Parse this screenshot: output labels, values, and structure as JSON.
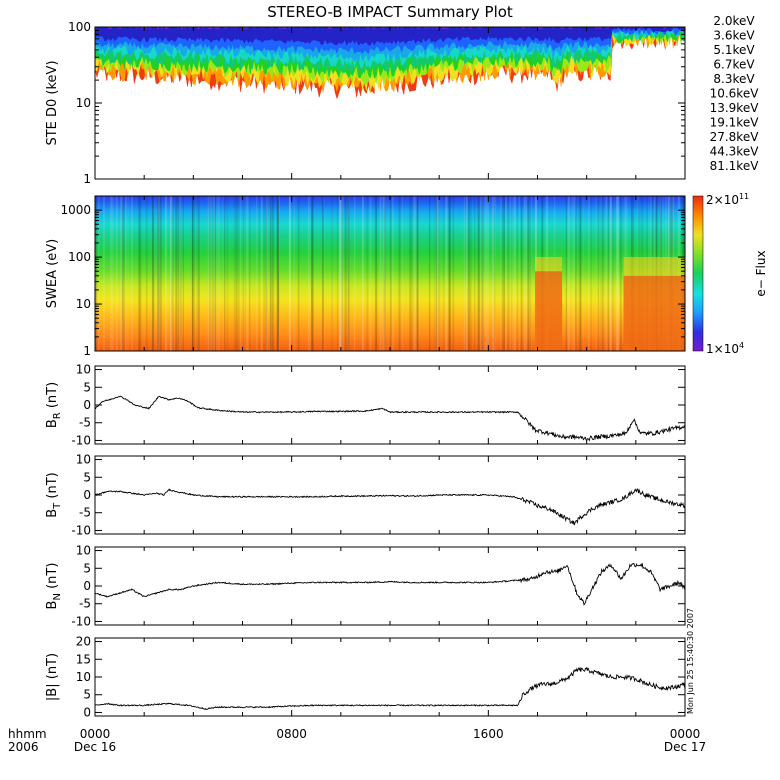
{
  "title": "STEREO-B IMPACT Summary Plot",
  "stamp": "Mon Jun 25 15:40:30 2007",
  "x_axis": {
    "label_lines": [
      "hhmm",
      "2006"
    ],
    "ticks": [
      {
        "t": 0,
        "line1": "0000",
        "line2": "Dec 16"
      },
      {
        "t": 8,
        "line1": "0800",
        "line2": ""
      },
      {
        "t": 16,
        "line1": "1600",
        "line2": ""
      },
      {
        "t": 24,
        "line1": "0000",
        "line2": "Dec 17"
      }
    ],
    "range_hours": [
      0,
      24
    ]
  },
  "chart_data": [
    {
      "type": "line",
      "id": "ste",
      "ylabel": "STE D0 (keV)",
      "scale": "log",
      "ylim": [
        1,
        100
      ],
      "yticks": [
        1,
        10,
        100
      ],
      "tick_labels": [
        "1",
        "10",
        "100"
      ],
      "series": [
        {
          "name": "2.0keV",
          "color": "#9b1fe8"
        },
        {
          "name": "3.6keV",
          "color": "#2323c8"
        },
        {
          "name": "5.1keV",
          "color": "#1e63ff"
        },
        {
          "name": "6.7keV",
          "color": "#18a8e8"
        },
        {
          "name": "8.3keV",
          "color": "#15d8c8"
        },
        {
          "name": "10.6keV",
          "color": "#14c870"
        },
        {
          "name": "13.9keV",
          "color": "#22d022"
        },
        {
          "name": "19.1keV",
          "color": "#9be81a"
        },
        {
          "name": "27.8keV",
          "color": "#f0e020"
        },
        {
          "name": "44.3keV",
          "color": "#ff9b00"
        },
        {
          "name": "81.1keV",
          "color": "#f03c14"
        }
      ],
      "profile_note": "",
      "typical_floor_keV": {
        "before_16h": 25,
        "min_around_11h": 15,
        "after_21h": 70
      }
    },
    {
      "type": "heatmap",
      "id": "swea",
      "ylabel": "SWEA (eV)",
      "scale": "log",
      "ylim": [
        1,
        2000
      ],
      "yticks": [
        1,
        10,
        100,
        1000
      ],
      "tick_labels": [
        "1",
        "10",
        "100",
        "1000"
      ],
      "colorbar": {
        "label": "e− Flux",
        "max_base": "2×10",
        "max_exp": "11",
        "min_base": "1×10",
        "min_exp": "4"
      },
      "features": [
        {
          "from_h": 17.9,
          "to_h": 19.0,
          "note": "enhanced flux below ~50 eV"
        },
        {
          "from_h": 21.5,
          "to_h": 24.0,
          "note": "enhanced flux below ~40 eV"
        }
      ]
    },
    {
      "type": "line",
      "id": "br",
      "ylabel_main": "B",
      "ylabel_sub": "R",
      "ylabel_unit": "(nT)",
      "ylim": [
        -11,
        11
      ],
      "yticks": [
        -10,
        -5,
        0,
        5,
        10
      ],
      "tick_labels": [
        "-10",
        "-5",
        "0",
        "5",
        "10"
      ],
      "keypoints": [
        [
          0,
          -1
        ],
        [
          0.3,
          1
        ],
        [
          0.6,
          1.5
        ],
        [
          1.0,
          2.5
        ],
        [
          1.3,
          1.5
        ],
        [
          1.6,
          0
        ],
        [
          2.2,
          -1
        ],
        [
          2.6,
          2.5
        ],
        [
          3.0,
          1.5
        ],
        [
          3.4,
          2
        ],
        [
          3.8,
          1
        ],
        [
          4.2,
          -0.8
        ],
        [
          5,
          -1.5
        ],
        [
          6,
          -2
        ],
        [
          7,
          -2
        ],
        [
          8,
          -2
        ],
        [
          9,
          -1.8
        ],
        [
          10,
          -1.8
        ],
        [
          11,
          -1.7
        ],
        [
          11.7,
          -1
        ],
        [
          12,
          -2
        ],
        [
          13,
          -2
        ],
        [
          14,
          -2
        ],
        [
          15,
          -2
        ],
        [
          16,
          -2
        ],
        [
          17.2,
          -2
        ],
        [
          17.5,
          -4
        ],
        [
          17.9,
          -7
        ],
        [
          18.5,
          -8
        ],
        [
          19,
          -9
        ],
        [
          19.5,
          -9
        ],
        [
          20,
          -9.5
        ],
        [
          20.5,
          -9
        ],
        [
          21.2,
          -8.5
        ],
        [
          21.6,
          -8
        ],
        [
          21.9,
          -4
        ],
        [
          22.2,
          -8
        ],
        [
          22.7,
          -8
        ],
        [
          23.3,
          -7
        ],
        [
          24,
          -6
        ]
      ]
    },
    {
      "type": "line",
      "id": "bt",
      "ylabel_main": "B",
      "ylabel_sub": "T",
      "ylabel_unit": "(nT)",
      "ylim": [
        -11,
        11
      ],
      "yticks": [
        -10,
        -5,
        0,
        5,
        10
      ],
      "tick_labels": [
        "-10",
        "-5",
        "0",
        "5",
        "10"
      ],
      "keypoints": [
        [
          0,
          0
        ],
        [
          0.5,
          1
        ],
        [
          1,
          1
        ],
        [
          1.5,
          0.5
        ],
        [
          2,
          0
        ],
        [
          2.5,
          0.5
        ],
        [
          2.8,
          0
        ],
        [
          3.0,
          1.5
        ],
        [
          3.3,
          1
        ],
        [
          4,
          0
        ],
        [
          5,
          -0.5
        ],
        [
          6,
          -0.5
        ],
        [
          7,
          -0.5
        ],
        [
          8,
          -0.5
        ],
        [
          9,
          -0.5
        ],
        [
          10,
          -0.3
        ],
        [
          11,
          -0.3
        ],
        [
          12,
          -0.2
        ],
        [
          13,
          -0.3
        ],
        [
          14,
          0
        ],
        [
          15,
          0
        ],
        [
          16,
          0
        ],
        [
          17,
          -0.5
        ],
        [
          17.5,
          -1.5
        ],
        [
          18,
          -3
        ],
        [
          18.5,
          -4
        ],
        [
          19,
          -6
        ],
        [
          19.5,
          -8
        ],
        [
          19.8,
          -6
        ],
        [
          20.2,
          -4
        ],
        [
          20.5,
          -3
        ],
        [
          21,
          -2
        ],
        [
          21.5,
          -1
        ],
        [
          22,
          1.5
        ],
        [
          22.4,
          0
        ],
        [
          22.8,
          -1
        ],
        [
          23.3,
          -2
        ],
        [
          24,
          -3
        ]
      ]
    },
    {
      "type": "line",
      "id": "bn",
      "ylabel_main": "B",
      "ylabel_sub": "N",
      "ylabel_unit": "(nT)",
      "ylim": [
        -11,
        11
      ],
      "yticks": [
        -10,
        -5,
        0,
        5,
        10
      ],
      "tick_labels": [
        "-10",
        "-5",
        "0",
        "5",
        "10"
      ],
      "keypoints": [
        [
          0,
          -2
        ],
        [
          0.5,
          -3
        ],
        [
          1,
          -2
        ],
        [
          1.5,
          -1
        ],
        [
          2,
          -3
        ],
        [
          2.5,
          -2
        ],
        [
          3,
          -1
        ],
        [
          3.5,
          -1
        ],
        [
          4,
          0
        ],
        [
          5,
          1
        ],
        [
          6,
          0.5
        ],
        [
          7,
          0.5
        ],
        [
          8,
          0.8
        ],
        [
          9,
          1
        ],
        [
          10,
          1
        ],
        [
          11,
          1
        ],
        [
          12,
          1.2
        ],
        [
          13,
          1
        ],
        [
          14,
          1
        ],
        [
          15,
          1
        ],
        [
          16,
          1
        ],
        [
          17,
          1.5
        ],
        [
          17.8,
          2
        ],
        [
          18.3,
          4
        ],
        [
          18.8,
          4
        ],
        [
          19.2,
          6
        ],
        [
          19.6,
          -2
        ],
        [
          19.9,
          -5
        ],
        [
          20.2,
          -1
        ],
        [
          20.6,
          4
        ],
        [
          21,
          6
        ],
        [
          21.4,
          2
        ],
        [
          21.8,
          6
        ],
        [
          22.2,
          6
        ],
        [
          22.6,
          4
        ],
        [
          23,
          -1
        ],
        [
          23.4,
          0
        ],
        [
          23.8,
          1
        ],
        [
          24,
          -1
        ]
      ]
    },
    {
      "type": "line",
      "id": "bmag",
      "ylabel_main": "|B|",
      "ylabel_unit": "(nT)",
      "ylim": [
        -1,
        21
      ],
      "yticks": [
        0,
        5,
        10,
        15,
        20
      ],
      "tick_labels": [
        "0",
        "5",
        "10",
        "15",
        "20"
      ],
      "keypoints": [
        [
          0,
          2
        ],
        [
          0.5,
          2.5
        ],
        [
          1,
          2
        ],
        [
          2,
          2
        ],
        [
          3,
          2.5
        ],
        [
          3.8,
          2
        ],
        [
          4.5,
          1
        ],
        [
          5,
          1.5
        ],
        [
          6,
          1.5
        ],
        [
          7,
          1.5
        ],
        [
          8,
          1.8
        ],
        [
          9,
          2
        ],
        [
          10,
          2
        ],
        [
          11,
          2
        ],
        [
          12,
          2
        ],
        [
          13,
          2
        ],
        [
          14,
          2
        ],
        [
          15,
          2
        ],
        [
          16,
          2
        ],
        [
          17,
          2
        ],
        [
          17.2,
          2
        ],
        [
          17.4,
          5
        ],
        [
          17.8,
          7
        ],
        [
          18.2,
          8
        ],
        [
          18.6,
          8
        ],
        [
          19.0,
          9
        ],
        [
          19.3,
          10
        ],
        [
          19.6,
          12
        ],
        [
          20,
          12
        ],
        [
          20.5,
          11
        ],
        [
          21,
          10
        ],
        [
          21.5,
          10
        ],
        [
          22,
          9.5
        ],
        [
          22.5,
          8
        ],
        [
          23,
          7
        ],
        [
          23.5,
          7
        ],
        [
          24,
          8
        ]
      ]
    }
  ]
}
